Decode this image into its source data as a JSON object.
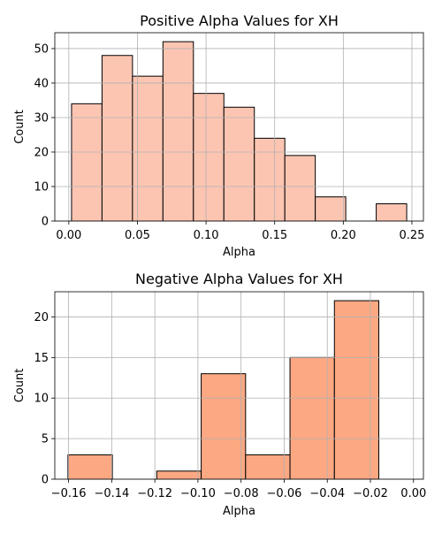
{
  "chart_data": [
    {
      "type": "bar",
      "title": "Positive Alpha Values for XH",
      "xlabel": "Alpha",
      "ylabel": "Count",
      "bins": [
        {
          "x0": 0.002,
          "x1": 0.0242,
          "value": 34
        },
        {
          "x0": 0.0242,
          "x1": 0.0464,
          "value": 48
        },
        {
          "x0": 0.0464,
          "x1": 0.0686,
          "value": 42
        },
        {
          "x0": 0.0686,
          "x1": 0.0908,
          "value": 52
        },
        {
          "x0": 0.0908,
          "x1": 0.113,
          "value": 37
        },
        {
          "x0": 0.113,
          "x1": 0.1352,
          "value": 33
        },
        {
          "x0": 0.1352,
          "x1": 0.1574,
          "value": 24
        },
        {
          "x0": 0.1574,
          "x1": 0.1796,
          "value": 19
        },
        {
          "x0": 0.1796,
          "x1": 0.2018,
          "value": 7
        },
        {
          "x0": 0.2018,
          "x1": 0.224,
          "value": 0
        },
        {
          "x0": 0.224,
          "x1": 0.2462,
          "value": 5
        }
      ],
      "xlim": [
        -0.0102,
        0.2584
      ],
      "ylim": [
        0,
        54.6
      ],
      "xticks": [
        0.0,
        0.05,
        0.1,
        0.15,
        0.2,
        0.25
      ],
      "xtick_labels": [
        "0.00",
        "0.05",
        "0.10",
        "0.15",
        "0.20",
        "0.25"
      ],
      "yticks": [
        0,
        10,
        20,
        30,
        40,
        50
      ],
      "ytick_labels": [
        "0",
        "10",
        "20",
        "30",
        "40",
        "50"
      ],
      "grid": true,
      "bar_color": "#fcc5b2",
      "edge_color": "#000000"
    },
    {
      "type": "bar",
      "title": "Negative Alpha Values for XH",
      "xlabel": "Alpha",
      "ylabel": "Count",
      "bins": [
        {
          "x0": -0.1603,
          "x1": -0.1397,
          "value": 3
        },
        {
          "x0": -0.1397,
          "x1": -0.1191,
          "value": 0
        },
        {
          "x0": -0.1191,
          "x1": -0.0985,
          "value": 1
        },
        {
          "x0": -0.0985,
          "x1": -0.0779,
          "value": 13
        },
        {
          "x0": -0.0779,
          "x1": -0.0573,
          "value": 3
        },
        {
          "x0": -0.0573,
          "x1": -0.0367,
          "value": 15
        },
        {
          "x0": -0.0367,
          "x1": -0.0161,
          "value": 22
        }
      ],
      "xlim": [
        -0.1664,
        0.0046
      ],
      "ylim": [
        0,
        23.1
      ],
      "xticks": [
        -0.16,
        -0.14,
        -0.12,
        -0.1,
        -0.08,
        -0.06,
        -0.04,
        -0.02,
        0.0
      ],
      "xtick_labels": [
        "−0.16",
        "−0.14",
        "−0.12",
        "−0.10",
        "−0.08",
        "−0.06",
        "−0.04",
        "−0.02",
        "0.00"
      ],
      "yticks": [
        0,
        5,
        10,
        15,
        20
      ],
      "ytick_labels": [
        "0",
        "5",
        "10",
        "15",
        "20"
      ],
      "grid": true,
      "bar_color": "#fca883",
      "edge_color": "#000000"
    }
  ]
}
